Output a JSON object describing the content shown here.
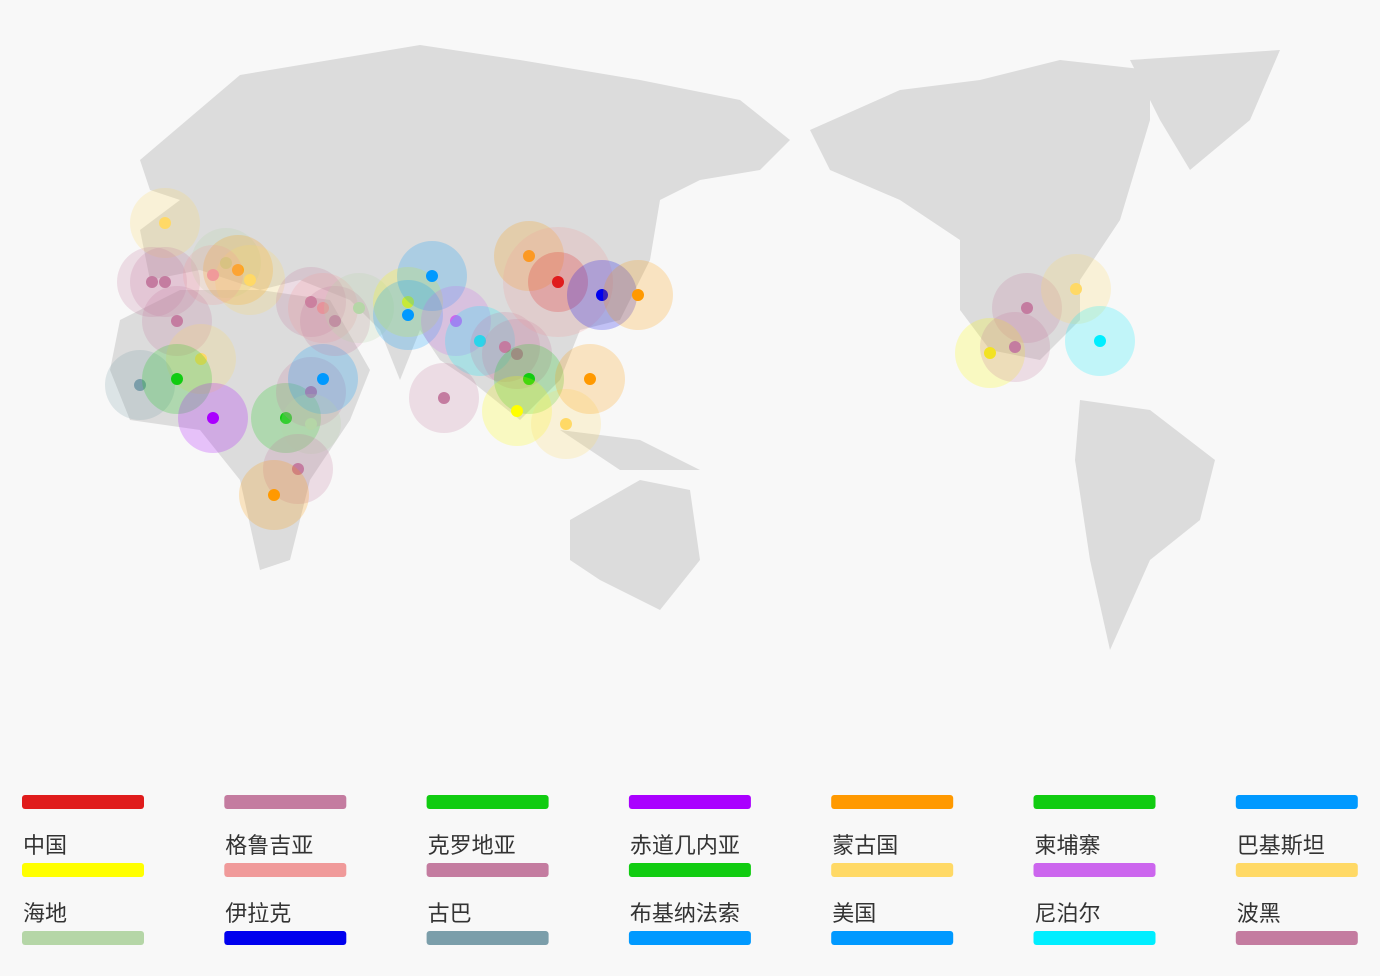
{
  "legend": {
    "items": [
      {
        "name": "中国",
        "color": "#e01c1c"
      },
      {
        "name": "格鲁吉亚",
        "color": "#c47ca0"
      },
      {
        "name": "克罗地亚",
        "color": "#11cc11"
      },
      {
        "name": "赤道几内亚",
        "color": "#aa00ff"
      },
      {
        "name": "蒙古国",
        "color": "#ff9900"
      },
      {
        "name": "柬埔寨",
        "color": "#11cc11"
      },
      {
        "name": "巴基斯坦",
        "color": "#0099ff"
      },
      {
        "name": "海地",
        "color": "#ffff00"
      },
      {
        "name": "伊拉克",
        "color": "#f09a9a"
      },
      {
        "name": "古巴",
        "color": "#c47ca0"
      },
      {
        "name": "布基纳法索",
        "color": "#11cc11"
      },
      {
        "name": "美国",
        "color": "#ffd966"
      },
      {
        "name": "尼泊尔",
        "color": "#cc66ee"
      },
      {
        "name": "波黑",
        "color": "#ffd966"
      },
      {
        "color": "#b5d6a7"
      },
      {
        "color": "#0000ee"
      },
      {
        "color": "#7b9eaa"
      },
      {
        "color": "#0099ff"
      },
      {
        "color": "#0099ff"
      },
      {
        "color": "#00eeff"
      },
      {
        "color": "#c47ca0"
      }
    ]
  }
}
